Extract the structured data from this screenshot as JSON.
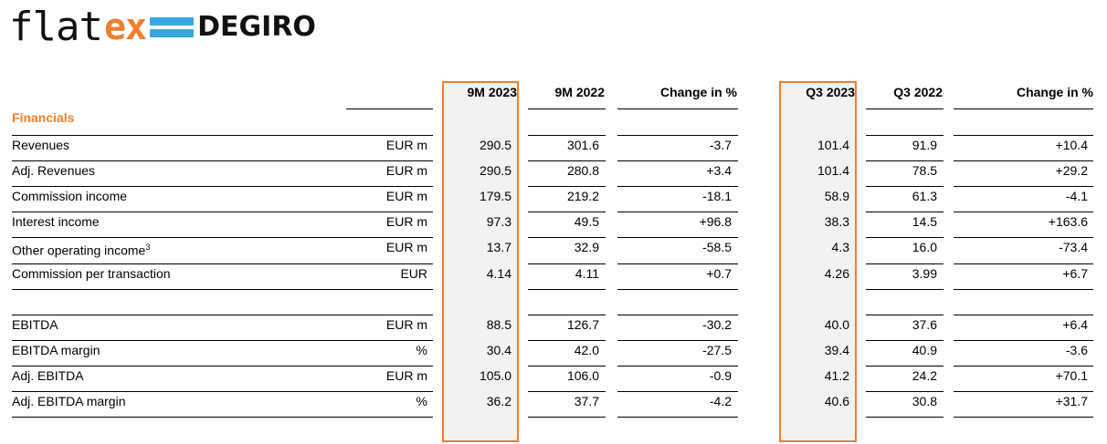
{
  "logo": {
    "part1": "flat",
    "part2": "ex",
    "part3": "DEGIRO"
  },
  "headers": [
    "9M 2023",
    "9M 2022",
    "Change in %",
    "Q3 2023",
    "Q3 2022",
    "Change in %"
  ],
  "section_title": "Financials",
  "rows": [
    {
      "label": "Revenues",
      "unit": "EUR m",
      "v": [
        "290.5",
        "301.6",
        "-3.7",
        "101.4",
        "91.9",
        "+10.4"
      ]
    },
    {
      "label": "Adj. Revenues",
      "unit": "EUR m",
      "v": [
        "290.5",
        "280.8",
        "+3.4",
        "101.4",
        "78.5",
        "+29.2"
      ]
    },
    {
      "label": "Commission income",
      "unit": "EUR m",
      "v": [
        "179.5",
        "219.2",
        "-18.1",
        "58.9",
        "61.3",
        "-4.1"
      ]
    },
    {
      "label": "Interest income",
      "unit": "EUR m",
      "v": [
        "97.3",
        "49.5",
        "+96.8",
        "38.3",
        "14.5",
        "+163.6"
      ]
    },
    {
      "label": "Other operating income",
      "sup": "3",
      "unit": "EUR m",
      "v": [
        "13.7",
        "32.9",
        "-58.5",
        "4.3",
        "16.0",
        "-73.4"
      ]
    },
    {
      "label": "Commission per transaction",
      "unit": "EUR",
      "v": [
        "4.14",
        "4.11",
        "+0.7",
        "4.26",
        "3.99",
        "+6.7"
      ]
    },
    {
      "label": "",
      "unit": "",
      "v": [
        "",
        "",
        "",
        "",
        "",
        ""
      ]
    },
    {
      "label": "EBITDA",
      "unit": "EUR m",
      "v": [
        "88.5",
        "126.7",
        "-30.2",
        "40.0",
        "37.6",
        "+6.4"
      ]
    },
    {
      "label": "EBITDA margin",
      "unit": "%",
      "v": [
        "30.4",
        "42.0",
        "-27.5",
        "39.4",
        "40.9",
        "-3.6"
      ]
    },
    {
      "label": "Adj. EBITDA",
      "unit": "EUR m",
      "v": [
        "105.0",
        "106.0",
        "-0.9",
        "41.2",
        "24.2",
        "+70.1"
      ]
    },
    {
      "label": "Adj. EBITDA margin",
      "unit": "%",
      "v": [
        "36.2",
        "37.7",
        "-4.2",
        "40.6",
        "30.8",
        "+31.7"
      ]
    }
  ],
  "colors": {
    "accent": "#ee7f2d",
    "logo_blue": "#37a7e0",
    "highlight_bg": "#f2f2f2"
  }
}
